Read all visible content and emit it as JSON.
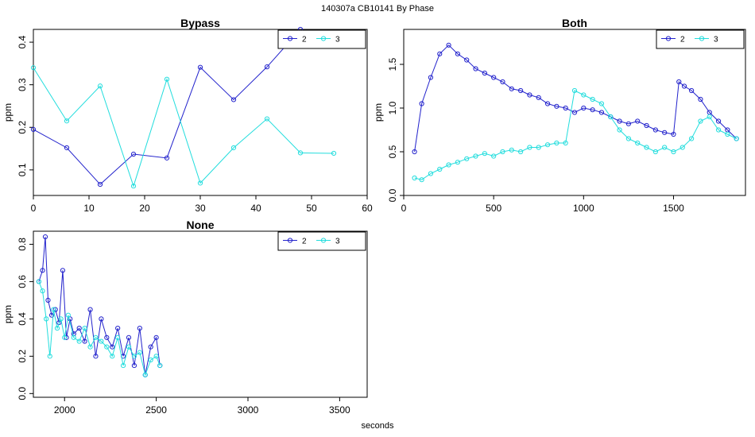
{
  "figure": {
    "suptitle": "140307a    CB10141   By Phase",
    "xlabel": "seconds"
  },
  "colors": {
    "series2": "#2222cc",
    "series3": "#22dddd"
  },
  "chart_data": [
    {
      "type": "line",
      "title": "Bypass",
      "ylabel": "ppm",
      "xlim": [
        0,
        60
      ],
      "ylim": [
        0.04,
        0.43
      ],
      "xticks": [
        "0",
        "10",
        "20",
        "30",
        "40",
        "50",
        "60"
      ],
      "xtick_values": [
        0,
        10,
        20,
        30,
        40,
        50,
        60
      ],
      "yticks": [
        "0.1",
        "0.2",
        "0.3",
        "0.4"
      ],
      "ytick_values": [
        0.1,
        0.2,
        0.3,
        0.4
      ],
      "legend": {
        "position": "top-right",
        "labels": [
          "2",
          "3"
        ]
      },
      "markers": true,
      "series": [
        {
          "name": "2",
          "x": [
            0,
            6,
            12,
            18,
            24,
            30,
            36,
            42,
            48
          ],
          "y": [
            0.195,
            0.152,
            0.066,
            0.137,
            0.128,
            0.341,
            0.265,
            0.342,
            0.43
          ]
        },
        {
          "name": "3",
          "x": [
            0,
            6,
            12,
            18,
            24,
            30,
            36,
            42,
            48,
            54
          ],
          "y": [
            0.34,
            0.215,
            0.297,
            0.062,
            0.313,
            0.069,
            0.152,
            0.22,
            0.14,
            0.139
          ]
        }
      ]
    },
    {
      "type": "line",
      "title": "Both",
      "ylabel": "ppm",
      "xlim": [
        0,
        1900
      ],
      "ylim": [
        0,
        1.9
      ],
      "xticks": [
        "0",
        "500",
        "1000",
        "1500"
      ],
      "xtick_values": [
        0,
        500,
        1000,
        1500
      ],
      "yticks": [
        "0.0",
        "0.5",
        "1.0",
        "1.5"
      ],
      "ytick_values": [
        0,
        0.5,
        1.0,
        1.5
      ],
      "legend": {
        "position": "top-right",
        "labels": [
          "2",
          "3"
        ]
      },
      "markers": true,
      "series": [
        {
          "name": "2",
          "x": [
            60,
            100,
            150,
            200,
            250,
            300,
            350,
            400,
            450,
            500,
            550,
            600,
            650,
            700,
            750,
            800,
            850,
            900,
            950,
            1000,
            1050,
            1100,
            1150,
            1200,
            1250,
            1300,
            1350,
            1400,
            1450,
            1500,
            1530,
            1560,
            1600,
            1650,
            1700,
            1750,
            1800,
            1850
          ],
          "y": [
            0.5,
            1.05,
            1.35,
            1.62,
            1.72,
            1.62,
            1.55,
            1.45,
            1.4,
            1.35,
            1.3,
            1.22,
            1.2,
            1.15,
            1.12,
            1.05,
            1.02,
            1.0,
            0.95,
            1.0,
            0.98,
            0.95,
            0.9,
            0.85,
            0.82,
            0.85,
            0.8,
            0.75,
            0.72,
            0.7,
            1.3,
            1.25,
            1.2,
            1.1,
            0.95,
            0.85,
            0.75,
            0.65
          ]
        },
        {
          "name": "3",
          "x": [
            60,
            100,
            150,
            200,
            250,
            300,
            350,
            400,
            450,
            500,
            550,
            600,
            650,
            700,
            750,
            800,
            850,
            900,
            950,
            1000,
            1050,
            1100,
            1150,
            1200,
            1250,
            1300,
            1350,
            1400,
            1450,
            1500,
            1550,
            1600,
            1650,
            1700,
            1750,
            1800,
            1850
          ],
          "y": [
            0.2,
            0.18,
            0.25,
            0.3,
            0.35,
            0.38,
            0.42,
            0.45,
            0.48,
            0.45,
            0.5,
            0.52,
            0.5,
            0.55,
            0.55,
            0.58,
            0.6,
            0.6,
            1.2,
            1.15,
            1.1,
            1.05,
            0.9,
            0.75,
            0.65,
            0.6,
            0.55,
            0.5,
            0.55,
            0.5,
            0.55,
            0.65,
            0.85,
            0.9,
            0.75,
            0.7,
            0.65
          ]
        }
      ]
    },
    {
      "type": "line",
      "title": "None",
      "ylabel": "ppm",
      "xlim": [
        1830,
        3650
      ],
      "ylim": [
        -0.02,
        0.87
      ],
      "xticks": [
        "2000",
        "2500",
        "3000",
        "3500"
      ],
      "xtick_values": [
        2000,
        2500,
        3000,
        3500
      ],
      "yticks": [
        "0.0",
        "0.2",
        "0.4",
        "0.6",
        "0.8"
      ],
      "ytick_values": [
        0,
        0.2,
        0.4,
        0.6,
        0.8
      ],
      "legend": {
        "position": "top-right",
        "labels": [
          "2",
          "3"
        ]
      },
      "markers": true,
      "series": [
        {
          "name": "2",
          "x": [
            1860,
            1880,
            1895,
            1910,
            1930,
            1950,
            1970,
            1990,
            2010,
            2030,
            2050,
            2080,
            2110,
            2140,
            2170,
            2200,
            2230,
            2260,
            2290,
            2320,
            2350,
            2380,
            2410,
            2440,
            2470,
            2500,
            2520
          ],
          "y": [
            0.6,
            0.66,
            0.84,
            0.5,
            0.42,
            0.45,
            0.38,
            0.66,
            0.3,
            0.4,
            0.32,
            0.35,
            0.28,
            0.45,
            0.2,
            0.4,
            0.3,
            0.25,
            0.35,
            0.2,
            0.3,
            0.15,
            0.35,
            0.1,
            0.25,
            0.3,
            0.15
          ]
        },
        {
          "name": "3",
          "x": [
            1860,
            1880,
            1900,
            1920,
            1940,
            1960,
            1980,
            2000,
            2020,
            2050,
            2080,
            2110,
            2140,
            2170,
            2200,
            2230,
            2260,
            2290,
            2320,
            2350,
            2380,
            2410,
            2440,
            2470,
            2500,
            2520
          ],
          "y": [
            0.6,
            0.55,
            0.4,
            0.2,
            0.45,
            0.35,
            0.4,
            0.3,
            0.42,
            0.3,
            0.28,
            0.35,
            0.25,
            0.3,
            0.28,
            0.25,
            0.2,
            0.3,
            0.15,
            0.25,
            0.2,
            0.22,
            0.1,
            0.18,
            0.2,
            0.15
          ]
        }
      ]
    }
  ]
}
